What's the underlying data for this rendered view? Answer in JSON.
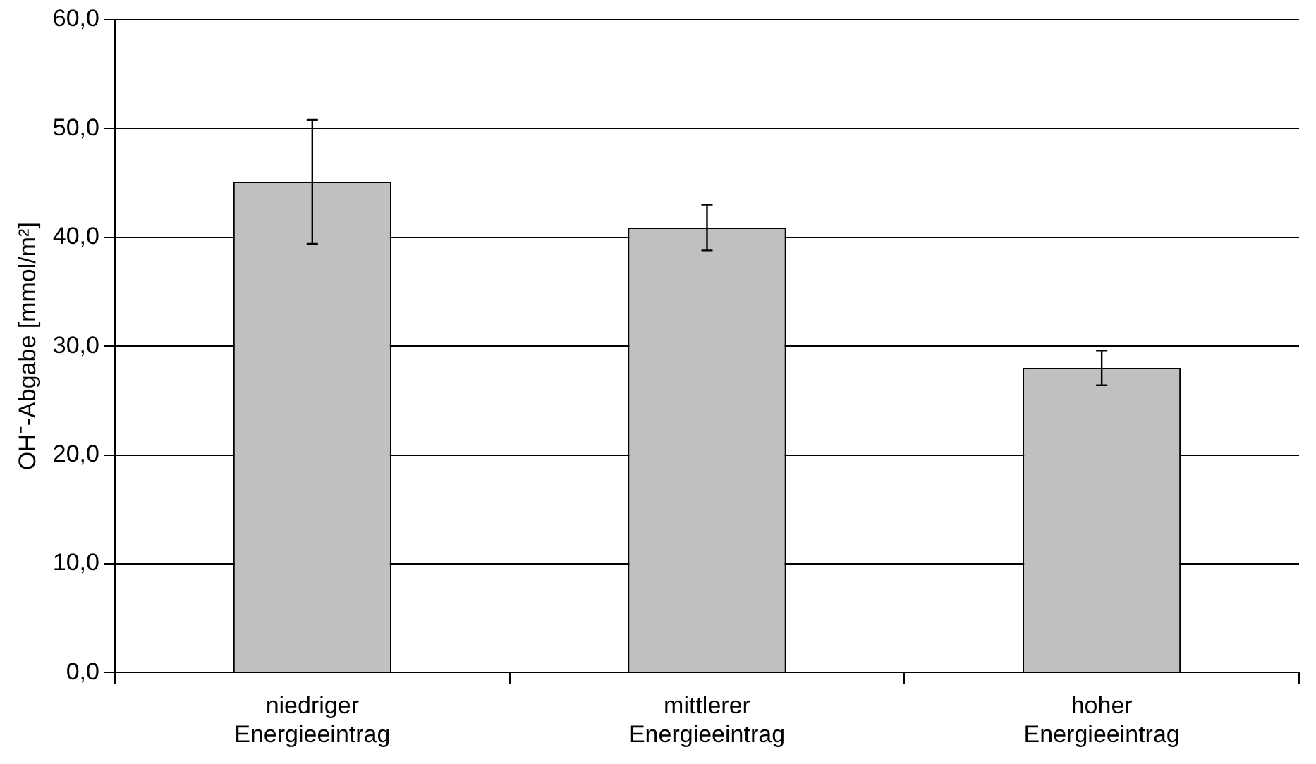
{
  "chart_data": {
    "type": "bar",
    "ylabel": "OH⁻-Abgabe [mmol/m²]",
    "categories": [
      "niedriger Energieeintrag",
      "mittlerer Energieeintrag",
      "hoher Energieeintrag"
    ],
    "values": [
      45.1,
      40.9,
      28.0
    ],
    "errors": [
      5.7,
      2.1,
      1.6
    ],
    "color": "#c0c0c0",
    "ylim": [
      0,
      60
    ],
    "yticks": [
      {
        "value": 0,
        "label": "0,0"
      },
      {
        "value": 10,
        "label": "10,0"
      },
      {
        "value": 20,
        "label": "20,0"
      },
      {
        "value": 30,
        "label": "30,0"
      },
      {
        "value": 40,
        "label": "40,0"
      },
      {
        "value": 50,
        "label": "50,0"
      },
      {
        "value": 60,
        "label": "60,0"
      }
    ],
    "grid": "y",
    "legend": false
  }
}
